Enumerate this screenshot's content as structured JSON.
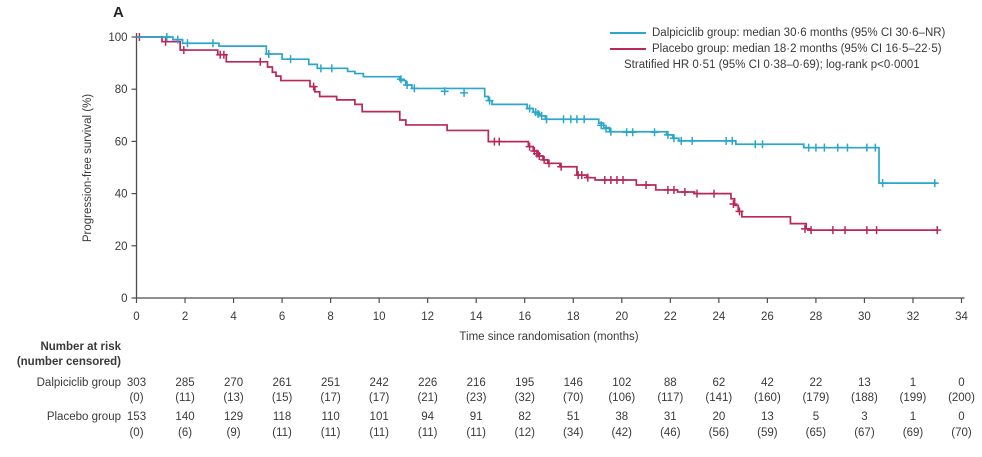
{
  "panel_label": "A",
  "colors": {
    "dalpiciclib": "#2CA6C9",
    "placebo": "#B9275B",
    "axis": "#4d4d4d",
    "text": "#3a3a3a"
  },
  "legend": {
    "entries": [
      {
        "series": "dalpiciclib",
        "label": "Dalpiciclib group: median 30·6 months (95% CI 30·6–NR)"
      },
      {
        "series": "placebo",
        "label": "Placebo group: median 18·2 months (95% CI 16·5–22·5)"
      }
    ],
    "note": "Stratified HR 0·51 (95% CI 0·38–0·69); log-rank p<0·0001"
  },
  "chart_data": {
    "type": "line",
    "subtype": "kaplan-meier-step",
    "title": "",
    "xlabel": "Time since randomisation (months)",
    "ylabel": "Progression-free survival (%)",
    "xlim": [
      0,
      34
    ],
    "ylim": [
      0,
      100
    ],
    "xticks": [
      0,
      2,
      4,
      6,
      8,
      10,
      12,
      14,
      16,
      18,
      20,
      22,
      24,
      26,
      28,
      30,
      32,
      34
    ],
    "yticks": [
      0,
      20,
      40,
      60,
      80,
      100
    ],
    "grid": false,
    "legend_position": "top-right",
    "series": [
      {
        "name": "Dalpiciclib group",
        "color_key": "dalpiciclib",
        "steps": [
          [
            0,
            100
          ],
          [
            1.5,
            99
          ],
          [
            1.9,
            97.6
          ],
          [
            3.4,
            96.5
          ],
          [
            5.35,
            93.5
          ],
          [
            6.0,
            91.5
          ],
          [
            7.1,
            89.5
          ],
          [
            7.45,
            88
          ],
          [
            8.7,
            86.8
          ],
          [
            9.0,
            86
          ],
          [
            9.35,
            84.8
          ],
          [
            10.85,
            83.3
          ],
          [
            11.1,
            81.6
          ],
          [
            11.35,
            80.3
          ],
          [
            14.35,
            77.2
          ],
          [
            14.5,
            75.6
          ],
          [
            14.65,
            74.2
          ],
          [
            16.1,
            72.6
          ],
          [
            16.35,
            71.2
          ],
          [
            16.6,
            69.8
          ],
          [
            16.85,
            68.5
          ],
          [
            19.05,
            67
          ],
          [
            19.25,
            65.3
          ],
          [
            19.5,
            63.7
          ],
          [
            21.85,
            62.5
          ],
          [
            22.1,
            61.2
          ],
          [
            22.35,
            60.2
          ],
          [
            24.7,
            58.9
          ],
          [
            27.5,
            57.6
          ],
          [
            30.6,
            44
          ],
          [
            33.0,
            44
          ]
        ],
        "censors": [
          [
            1.25,
            100
          ],
          [
            1.7,
            99
          ],
          [
            2.1,
            97.6
          ],
          [
            3.15,
            97.6
          ],
          [
            5.45,
            93.5
          ],
          [
            6.35,
            91.5
          ],
          [
            7.6,
            88
          ],
          [
            8.05,
            88
          ],
          [
            10.9,
            83.8
          ],
          [
            11.15,
            81.6
          ],
          [
            11.45,
            80.3
          ],
          [
            12.7,
            79.2
          ],
          [
            13.5,
            78.6
          ],
          [
            14.55,
            75.6
          ],
          [
            16.2,
            72.6
          ],
          [
            16.45,
            71.2
          ],
          [
            16.55,
            70.5
          ],
          [
            16.7,
            69.8
          ],
          [
            16.9,
            68.5
          ],
          [
            17.6,
            68.5
          ],
          [
            17.9,
            68.5
          ],
          [
            18.15,
            68.5
          ],
          [
            18.45,
            68.5
          ],
          [
            19.15,
            66.2
          ],
          [
            19.35,
            64.9
          ],
          [
            19.55,
            63.7
          ],
          [
            20.2,
            63.5
          ],
          [
            20.45,
            63.5
          ],
          [
            21.35,
            63.5
          ],
          [
            21.9,
            62.5
          ],
          [
            22.15,
            61.2
          ],
          [
            22.45,
            60.2
          ],
          [
            22.9,
            60.2
          ],
          [
            24.3,
            60.2
          ],
          [
            24.55,
            60.2
          ],
          [
            25.5,
            58.9
          ],
          [
            25.8,
            58.9
          ],
          [
            27.7,
            57.6
          ],
          [
            28.0,
            57.6
          ],
          [
            28.35,
            57.6
          ],
          [
            28.9,
            57.6
          ],
          [
            29.3,
            57.6
          ],
          [
            30.1,
            57.6
          ],
          [
            30.45,
            57.6
          ],
          [
            30.75,
            44
          ],
          [
            32.9,
            44
          ]
        ]
      },
      {
        "name": "Placebo group",
        "color_key": "placebo",
        "steps": [
          [
            0,
            100
          ],
          [
            1.05,
            98.2
          ],
          [
            1.8,
            95
          ],
          [
            3.35,
            93.2
          ],
          [
            3.7,
            90.5
          ],
          [
            5.4,
            88.5
          ],
          [
            5.6,
            86.5
          ],
          [
            5.75,
            85
          ],
          [
            5.95,
            83.3
          ],
          [
            7.15,
            81
          ],
          [
            7.35,
            79
          ],
          [
            7.55,
            77.2
          ],
          [
            8.25,
            75.9
          ],
          [
            9.0,
            74.2
          ],
          [
            9.3,
            71.4
          ],
          [
            10.85,
            68.2
          ],
          [
            11.1,
            66.3
          ],
          [
            12.8,
            64.2
          ],
          [
            14.5,
            59.9
          ],
          [
            16.15,
            58
          ],
          [
            16.35,
            56.3
          ],
          [
            16.55,
            54.4
          ],
          [
            16.75,
            52.9
          ],
          [
            16.95,
            51.6
          ],
          [
            17.45,
            50.3
          ],
          [
            18.15,
            47.1
          ],
          [
            18.55,
            46.1
          ],
          [
            18.9,
            45.2
          ],
          [
            20.6,
            43.3
          ],
          [
            21.4,
            41.4
          ],
          [
            22.3,
            40.6
          ],
          [
            23.0,
            40.0
          ],
          [
            24.5,
            38
          ],
          [
            24.65,
            35.5
          ],
          [
            24.8,
            33.2
          ],
          [
            24.95,
            31.1
          ],
          [
            26.95,
            28.5
          ],
          [
            27.6,
            26.5
          ],
          [
            27.75,
            26
          ],
          [
            33.05,
            26
          ]
        ],
        "censors": [
          [
            0.12,
            100
          ],
          [
            1.2,
            98.2
          ],
          [
            1.95,
            95
          ],
          [
            3.45,
            93.2
          ],
          [
            3.6,
            93.2
          ],
          [
            5.1,
            90.5
          ],
          [
            7.3,
            81
          ],
          [
            14.75,
            59.9
          ],
          [
            14.95,
            59.9
          ],
          [
            16.2,
            58
          ],
          [
            16.4,
            56.3
          ],
          [
            16.5,
            55.3
          ],
          [
            16.6,
            54.4
          ],
          [
            16.8,
            52.9
          ],
          [
            17.0,
            51.6
          ],
          [
            17.5,
            50.3
          ],
          [
            18.2,
            47.1
          ],
          [
            18.35,
            47.1
          ],
          [
            18.6,
            46.1
          ],
          [
            19.3,
            45.2
          ],
          [
            19.55,
            45.2
          ],
          [
            19.8,
            45.2
          ],
          [
            20.05,
            45.2
          ],
          [
            21.0,
            43.3
          ],
          [
            21.9,
            41.4
          ],
          [
            22.15,
            41.4
          ],
          [
            22.6,
            40.6
          ],
          [
            23.1,
            40.0
          ],
          [
            23.8,
            40.0
          ],
          [
            24.6,
            36
          ],
          [
            24.85,
            33.2
          ],
          [
            27.55,
            26.5
          ],
          [
            27.8,
            26
          ],
          [
            28.7,
            26
          ],
          [
            29.2,
            26
          ],
          [
            30.1,
            26
          ],
          [
            30.5,
            26
          ],
          [
            33.0,
            26
          ]
        ]
      }
    ]
  },
  "risk_table": {
    "header_line1": "Number at risk",
    "header_line2": "(number censored)",
    "months": [
      0,
      2,
      4,
      6,
      8,
      10,
      12,
      14,
      16,
      18,
      20,
      22,
      24,
      26,
      28,
      30,
      32,
      34
    ],
    "rows": [
      {
        "label": "Dalpiciclib group",
        "at_risk": [
          "303",
          "285",
          "270",
          "261",
          "251",
          "242",
          "226",
          "216",
          "195",
          "146",
          "102",
          "88",
          "62",
          "42",
          "22",
          "13",
          "1",
          "0"
        ],
        "censored": [
          "(0)",
          "(11)",
          "(13)",
          "(15)",
          "(17)",
          "(17)",
          "(21)",
          "(23)",
          "(32)",
          "(70)",
          "(106)",
          "(117)",
          "(141)",
          "(160)",
          "(179)",
          "(188)",
          "(199)",
          "(200)"
        ]
      },
      {
        "label": "Placebo group",
        "at_risk": [
          "153",
          "140",
          "129",
          "118",
          "110",
          "101",
          "94",
          "91",
          "82",
          "51",
          "38",
          "31",
          "20",
          "13",
          "5",
          "3",
          "1",
          "0"
        ],
        "censored": [
          "(0)",
          "(6)",
          "(9)",
          "(11)",
          "(11)",
          "(11)",
          "(11)",
          "(11)",
          "(12)",
          "(34)",
          "(42)",
          "(46)",
          "(56)",
          "(59)",
          "(65)",
          "(67)",
          "(69)",
          "(70)"
        ]
      }
    ]
  }
}
